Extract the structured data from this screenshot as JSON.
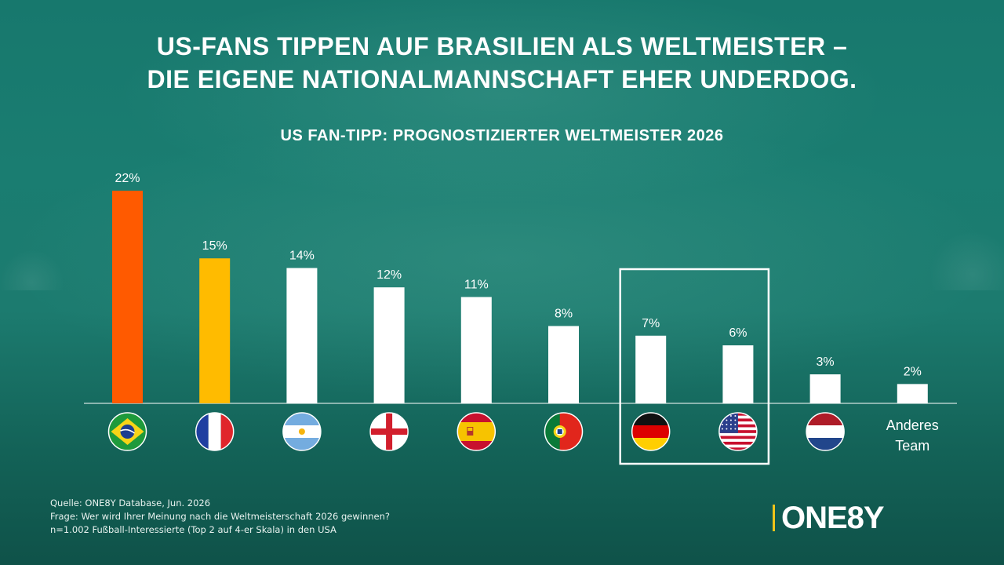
{
  "headline": {
    "line1": "US-FANS TIPPEN AUF BRASILIEN ALS WELTMEISTER –",
    "line2": "DIE EIGENE NATIONALMANNSCHAFT EHER UNDERDOG."
  },
  "chart_data": {
    "type": "bar",
    "title": "US FAN-TIPP: PROGNOSTIZIERTER WELTMEISTER 2026",
    "categories": [
      "Brasilien",
      "Frankreich",
      "Argentinien",
      "England",
      "Spanien",
      "Portugal",
      "Deutschland",
      "USA",
      "Niederlande",
      "Anderes Team"
    ],
    "values": [
      22,
      15,
      14,
      12,
      11,
      8,
      7,
      6,
      3,
      2
    ],
    "value_labels": [
      "22%",
      "15%",
      "14%",
      "12%",
      "11%",
      "8%",
      "7%",
      "6%",
      "3%",
      "2%"
    ],
    "category_icons": [
      "flag-brazil",
      "flag-france",
      "flag-argentina",
      "flag-england",
      "flag-spain",
      "flag-portugal",
      "flag-germany",
      "flag-usa",
      "flag-netherlands",
      ""
    ],
    "text_category_label": [
      "Anderes",
      "Team"
    ],
    "unit": "%",
    "ylim": [
      0,
      22
    ],
    "grid": false,
    "highlighted_categories": [
      "Deutschland",
      "USA"
    ],
    "colors": {
      "Brasilien": "#ff5a00",
      "Frankreich": "#ffbb00",
      "default": "#ffffff"
    }
  },
  "footer": {
    "source": "Quelle: ONE8Y Database, Jun. 2026",
    "question": "Frage: Wer wird Ihrer Meinung nach die Weltmeisterschaft 2026 gewinnen?",
    "sample": "n=1.002 Fußball-Interessierte (Top 2 auf 4-er Skala) in den USA"
  },
  "brand": {
    "name": "ONE8Y",
    "accent": "#f0c419"
  }
}
